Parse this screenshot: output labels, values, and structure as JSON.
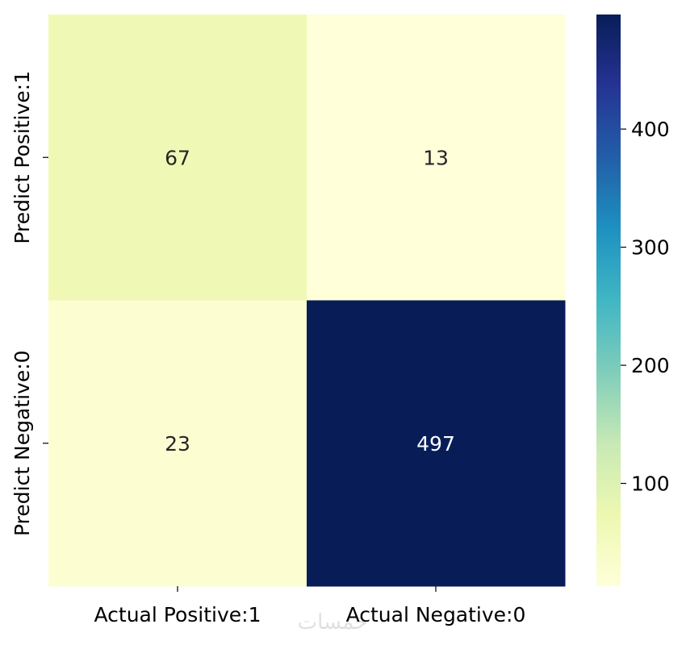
{
  "chart_data": {
    "type": "heatmap",
    "title": "",
    "x_categories": [
      "Actual Positive:1",
      "Actual Negative:0"
    ],
    "y_categories": [
      "Predict Positive:1",
      "Predict Negative:0"
    ],
    "values": [
      [
        67,
        13
      ],
      [
        23,
        497
      ]
    ],
    "colormap": "YlGnBu",
    "vmin": 13,
    "vmax": 497,
    "colorbar_ticks": [
      100,
      200,
      300,
      400
    ],
    "colormap_stops": [
      "#ffffd9",
      "#edf8b1",
      "#c7e9b4",
      "#7fcdbb",
      "#41b6c4",
      "#1d91c0",
      "#225ea8",
      "#253494",
      "#081d58"
    ],
    "annotation_dark_color": "#262626",
    "annotation_light_color": "#ffffff"
  },
  "watermark": "خمسات"
}
